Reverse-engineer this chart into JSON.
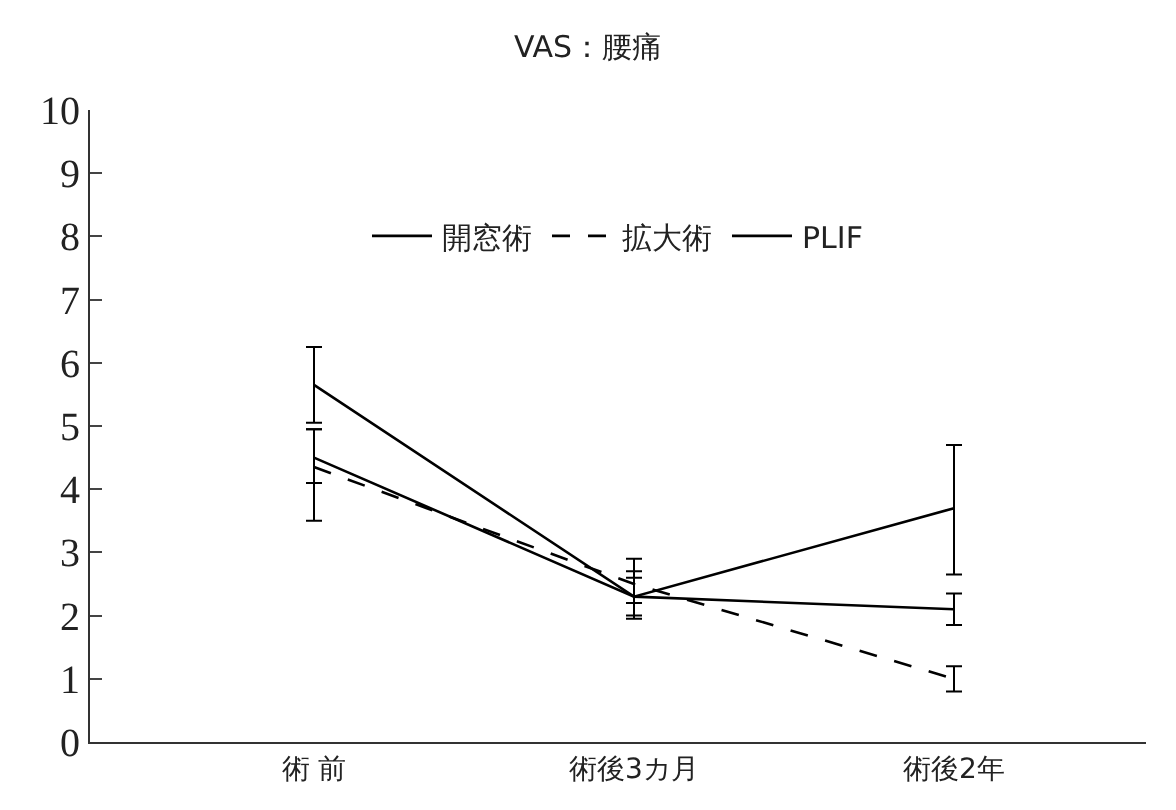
{
  "chart_data": {
    "type": "line",
    "title": "VAS：腰痛",
    "categories": [
      "術 前",
      "術後3カ月",
      "術後2年"
    ],
    "series": [
      {
        "name": "開窓術",
        "color": "#000000",
        "line_style": "solid",
        "values": [
          4.5,
          2.3,
          2.1
        ],
        "errors": [
          [
            4.1,
            4.95
          ],
          [
            2.0,
            2.6
          ],
          [
            1.85,
            2.35
          ]
        ]
      },
      {
        "name": "拡大術",
        "color": "#000000",
        "line_style": "dashed",
        "values": [
          4.35,
          2.5,
          1.0
        ],
        "errors": [
          [
            3.5,
            4.95
          ],
          [
            2.2,
            2.9
          ],
          [
            0.8,
            1.2
          ]
        ]
      },
      {
        "name": "PLIF",
        "color": "#000000",
        "line_style": "solid",
        "values": [
          5.65,
          2.3,
          3.7
        ],
        "errors": [
          [
            5.05,
            6.25
          ],
          [
            1.95,
            2.7
          ],
          [
            2.65,
            4.7
          ]
        ]
      }
    ],
    "ylim": [
      0,
      10
    ],
    "yticks": [
      0,
      1,
      2,
      3,
      4,
      5,
      6,
      7,
      8,
      9,
      10
    ],
    "legend": "top",
    "marker": "none"
  }
}
